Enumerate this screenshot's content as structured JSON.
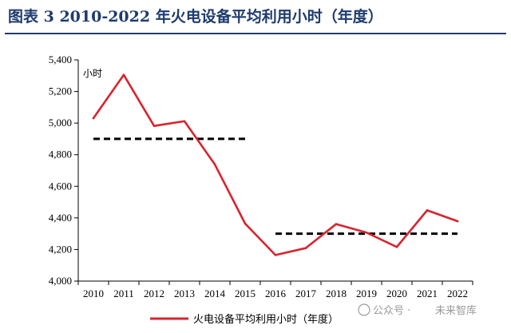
{
  "title": "图表 3  2010-2022 年火电设备平均利用小时（年度）",
  "chart_data": {
    "type": "line",
    "title": "图表 3  2010-2022 年火电设备平均利用小时（年度）",
    "unit_label": "小时",
    "categories": [
      "2010",
      "2011",
      "2012",
      "2013",
      "2014",
      "2015",
      "2016",
      "2017",
      "2018",
      "2019",
      "2020",
      "2021",
      "2022"
    ],
    "series": [
      {
        "name": "火电设备平均利用小时（年度）",
        "color": "#d9232e",
        "values": [
          5031,
          5305,
          4982,
          5012,
          4739,
          4364,
          4165,
          4209,
          4361,
          4307,
          4216,
          4448,
          4379
        ]
      }
    ],
    "reference_lines": [
      {
        "from": "2010",
        "to": "2015",
        "value": 4900,
        "style": "dashed",
        "color": "#000000"
      },
      {
        "from": "2016",
        "to": "2022",
        "value": 4300,
        "style": "dashed",
        "color": "#000000"
      }
    ],
    "ylim": [
      4000,
      5400
    ],
    "yticks": [
      4000,
      4200,
      4400,
      4600,
      4800,
      5000,
      5200,
      5400
    ],
    "ytick_labels": [
      "4,000",
      "4,200",
      "4,400",
      "4,600",
      "4,800",
      "5,000",
      "5,200",
      "5,400"
    ],
    "legend_position": "bottom",
    "grid": false
  },
  "watermark": {
    "prefix": "公众号 · ",
    "name": "未来智库"
  }
}
